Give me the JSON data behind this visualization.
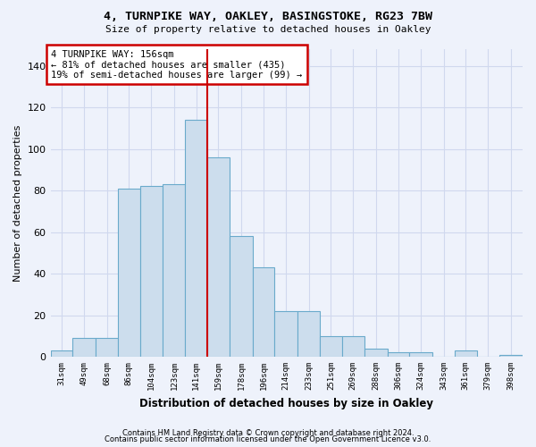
{
  "title1": "4, TURNPIKE WAY, OAKLEY, BASINGSTOKE, RG23 7BW",
  "title2": "Size of property relative to detached houses in Oakley",
  "xlabel": "Distribution of detached houses by size in Oakley",
  "ylabel": "Number of detached properties",
  "categories": [
    "31sqm",
    "49sqm",
    "68sqm",
    "86sqm",
    "104sqm",
    "123sqm",
    "141sqm",
    "159sqm",
    "178sqm",
    "196sqm",
    "214sqm",
    "233sqm",
    "251sqm",
    "269sqm",
    "288sqm",
    "306sqm",
    "324sqm",
    "343sqm",
    "361sqm",
    "379sqm",
    "398sqm"
  ],
  "bar_values": [
    3,
    9,
    9,
    81,
    82,
    83,
    114,
    96,
    58,
    43,
    22,
    22,
    10,
    10,
    4,
    2,
    2,
    0,
    3,
    0,
    1
  ],
  "bar_color": "#ccdded",
  "bar_edgecolor": "#6aaacb",
  "vline_color": "#cc0000",
  "annotation_text": "4 TURNPIKE WAY: 156sqm\n← 81% of detached houses are smaller (435)\n19% of semi-detached houses are larger (99) →",
  "annotation_box_color": "white",
  "annotation_box_edgecolor": "#cc0000",
  "ylim": [
    0,
    148
  ],
  "yticks": [
    0,
    20,
    40,
    60,
    80,
    100,
    120,
    140
  ],
  "footer1": "Contains HM Land Registry data © Crown copyright and database right 2024.",
  "footer2": "Contains public sector information licensed under the Open Government Licence v3.0.",
  "bg_color": "#eef2fb",
  "grid_color": "#d0d8ee"
}
